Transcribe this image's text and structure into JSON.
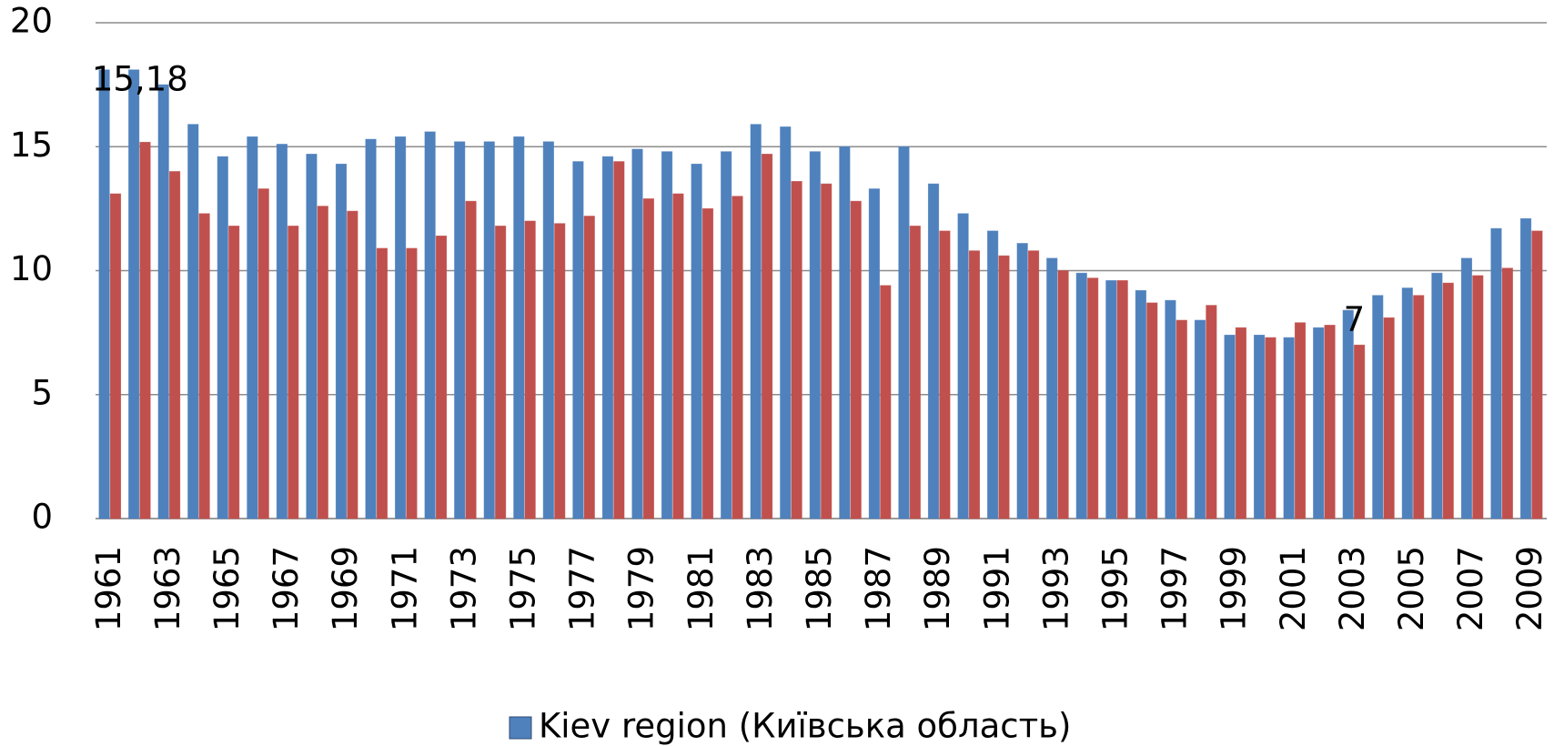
{
  "chart_data": {
    "type": "bar",
    "categories": [
      "1961",
      null,
      "1963",
      null,
      "1965",
      null,
      "1967",
      null,
      "1969",
      null,
      "1971",
      null,
      "1973",
      null,
      "1975",
      null,
      "1977",
      null,
      "1979",
      null,
      "1981",
      null,
      "1983",
      null,
      "1985",
      null,
      "1987",
      null,
      "1989",
      null,
      "1991",
      null,
      "1993",
      null,
      "1995",
      null,
      "1997",
      null,
      "1999",
      null,
      "2001",
      null,
      "2003",
      null,
      "2005",
      null,
      "2007",
      null,
      "2009"
    ],
    "series": [
      {
        "name": "Kiev region (Київська область)",
        "color": "#4f81bd",
        "values": [
          18.1,
          18.1,
          17.5,
          15.9,
          14.6,
          15.4,
          15.1,
          14.7,
          14.3,
          15.3,
          15.4,
          15.6,
          15.2,
          15.2,
          15.4,
          15.2,
          14.4,
          14.6,
          14.9,
          14.8,
          14.3,
          14.8,
          15.9,
          15.8,
          14.8,
          15.0,
          13.3,
          15.0,
          13.5,
          12.3,
          11.6,
          11.1,
          10.5,
          9.9,
          9.6,
          9.2,
          8.8,
          8.0,
          7.4,
          7.4,
          7.3,
          7.7,
          8.4,
          9.0,
          9.3,
          9.9,
          10.5,
          11.7,
          12.1
        ]
      },
      {
        "color": "#c0504d",
        "values": [
          13.1,
          15.18,
          14.0,
          12.3,
          11.8,
          13.3,
          11.8,
          12.6,
          12.4,
          10.9,
          10.9,
          11.4,
          12.8,
          11.8,
          12.0,
          11.9,
          12.2,
          14.4,
          12.9,
          13.1,
          12.5,
          13.0,
          14.7,
          13.6,
          13.5,
          12.8,
          9.4,
          11.8,
          11.6,
          10.8,
          10.6,
          10.8,
          10.0,
          9.7,
          9.6,
          8.7,
          8.0,
          8.6,
          7.7,
          7.3,
          7.9,
          7.8,
          7.0,
          8.1,
          9.0,
          9.5,
          9.8,
          10.1,
          11.6
        ],
        "value_labels": [
          null,
          "15,18",
          null,
          null,
          null,
          null,
          null,
          null,
          null,
          null,
          null,
          null,
          null,
          null,
          null,
          null,
          null,
          null,
          null,
          null,
          null,
          null,
          null,
          null,
          null,
          null,
          null,
          null,
          null,
          null,
          null,
          null,
          null,
          null,
          null,
          null,
          null,
          null,
          null,
          null,
          null,
          null,
          "7",
          null,
          null,
          null,
          null,
          null,
          null
        ]
      }
    ],
    "ylim": [
      0,
      20
    ],
    "yticks": [
      0,
      5,
      10,
      15,
      20
    ],
    "grid": true,
    "legend": "bottom"
  }
}
